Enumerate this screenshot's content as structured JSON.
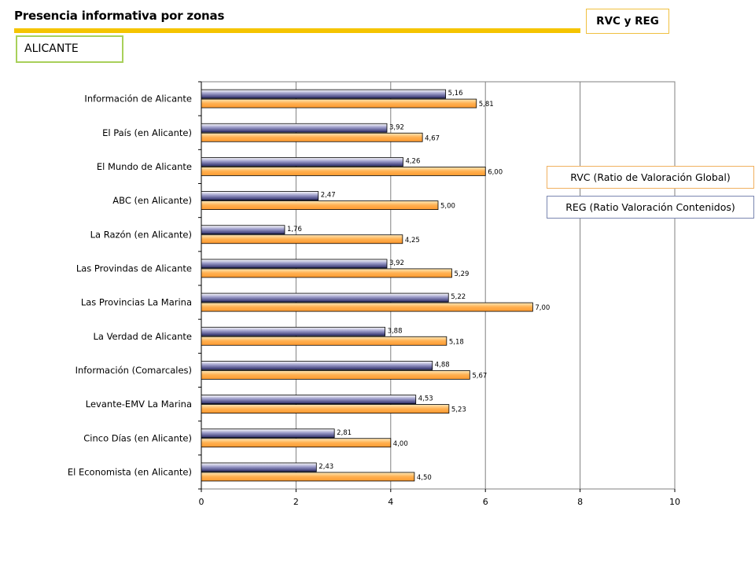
{
  "header": {
    "title": "Presencia informativa por zonas",
    "tag": "RVC y REG"
  },
  "region": "ALICANTE",
  "legend": {
    "rvc": "RVC (Ratio de Valoración Global)",
    "reg": "REG (Ratio Valoración Contenidos)"
  },
  "colors": {
    "header_bar": "#f5c400",
    "series_rvc": "#3a3a78",
    "series_reg": "#f08a20"
  },
  "chart_data": {
    "type": "bar",
    "orientation": "horizontal",
    "categories": [
      "Información de Alicante",
      "El País (en Alicante)",
      "El Mundo de Alicante",
      "ABC (en Alicante)",
      "La Razón (en Alicante)",
      "Las Provindas de Alicante",
      "Las Provincias La Marina",
      "La Verdad de Alicante",
      "Información (Comarcales)",
      "Levante-EMV La Marina",
      "Cinco Días (en Alicante)",
      "El Economista (en Alicante)"
    ],
    "series": [
      {
        "values": [
          5.16,
          3.92,
          4.26,
          2.47,
          1.76,
          3.92,
          5.22,
          3.88,
          4.88,
          4.53,
          2.81,
          2.43
        ],
        "labels": [
          "5,16",
          "3,92",
          "4,26",
          "2,47",
          "1,76",
          "3,92",
          "5,22",
          "3,88",
          "4,88",
          "4,53",
          "2,81",
          "2,43"
        ]
      },
      {
        "values": [
          5.81,
          4.67,
          6.0,
          5.0,
          4.25,
          5.29,
          7.0,
          5.18,
          5.67,
          5.23,
          4.0,
          4.5
        ],
        "labels": [
          "5,81",
          "4,67",
          "6,00",
          "5,00",
          "4,25",
          "5,29",
          "7,00",
          "5,18",
          "5,67",
          "5,23",
          "4,00",
          "4,50"
        ]
      }
    ],
    "xlim": [
      0,
      10
    ],
    "xticks": [
      "0",
      "2",
      "4",
      "6",
      "8",
      "10"
    ],
    "grid": true
  }
}
